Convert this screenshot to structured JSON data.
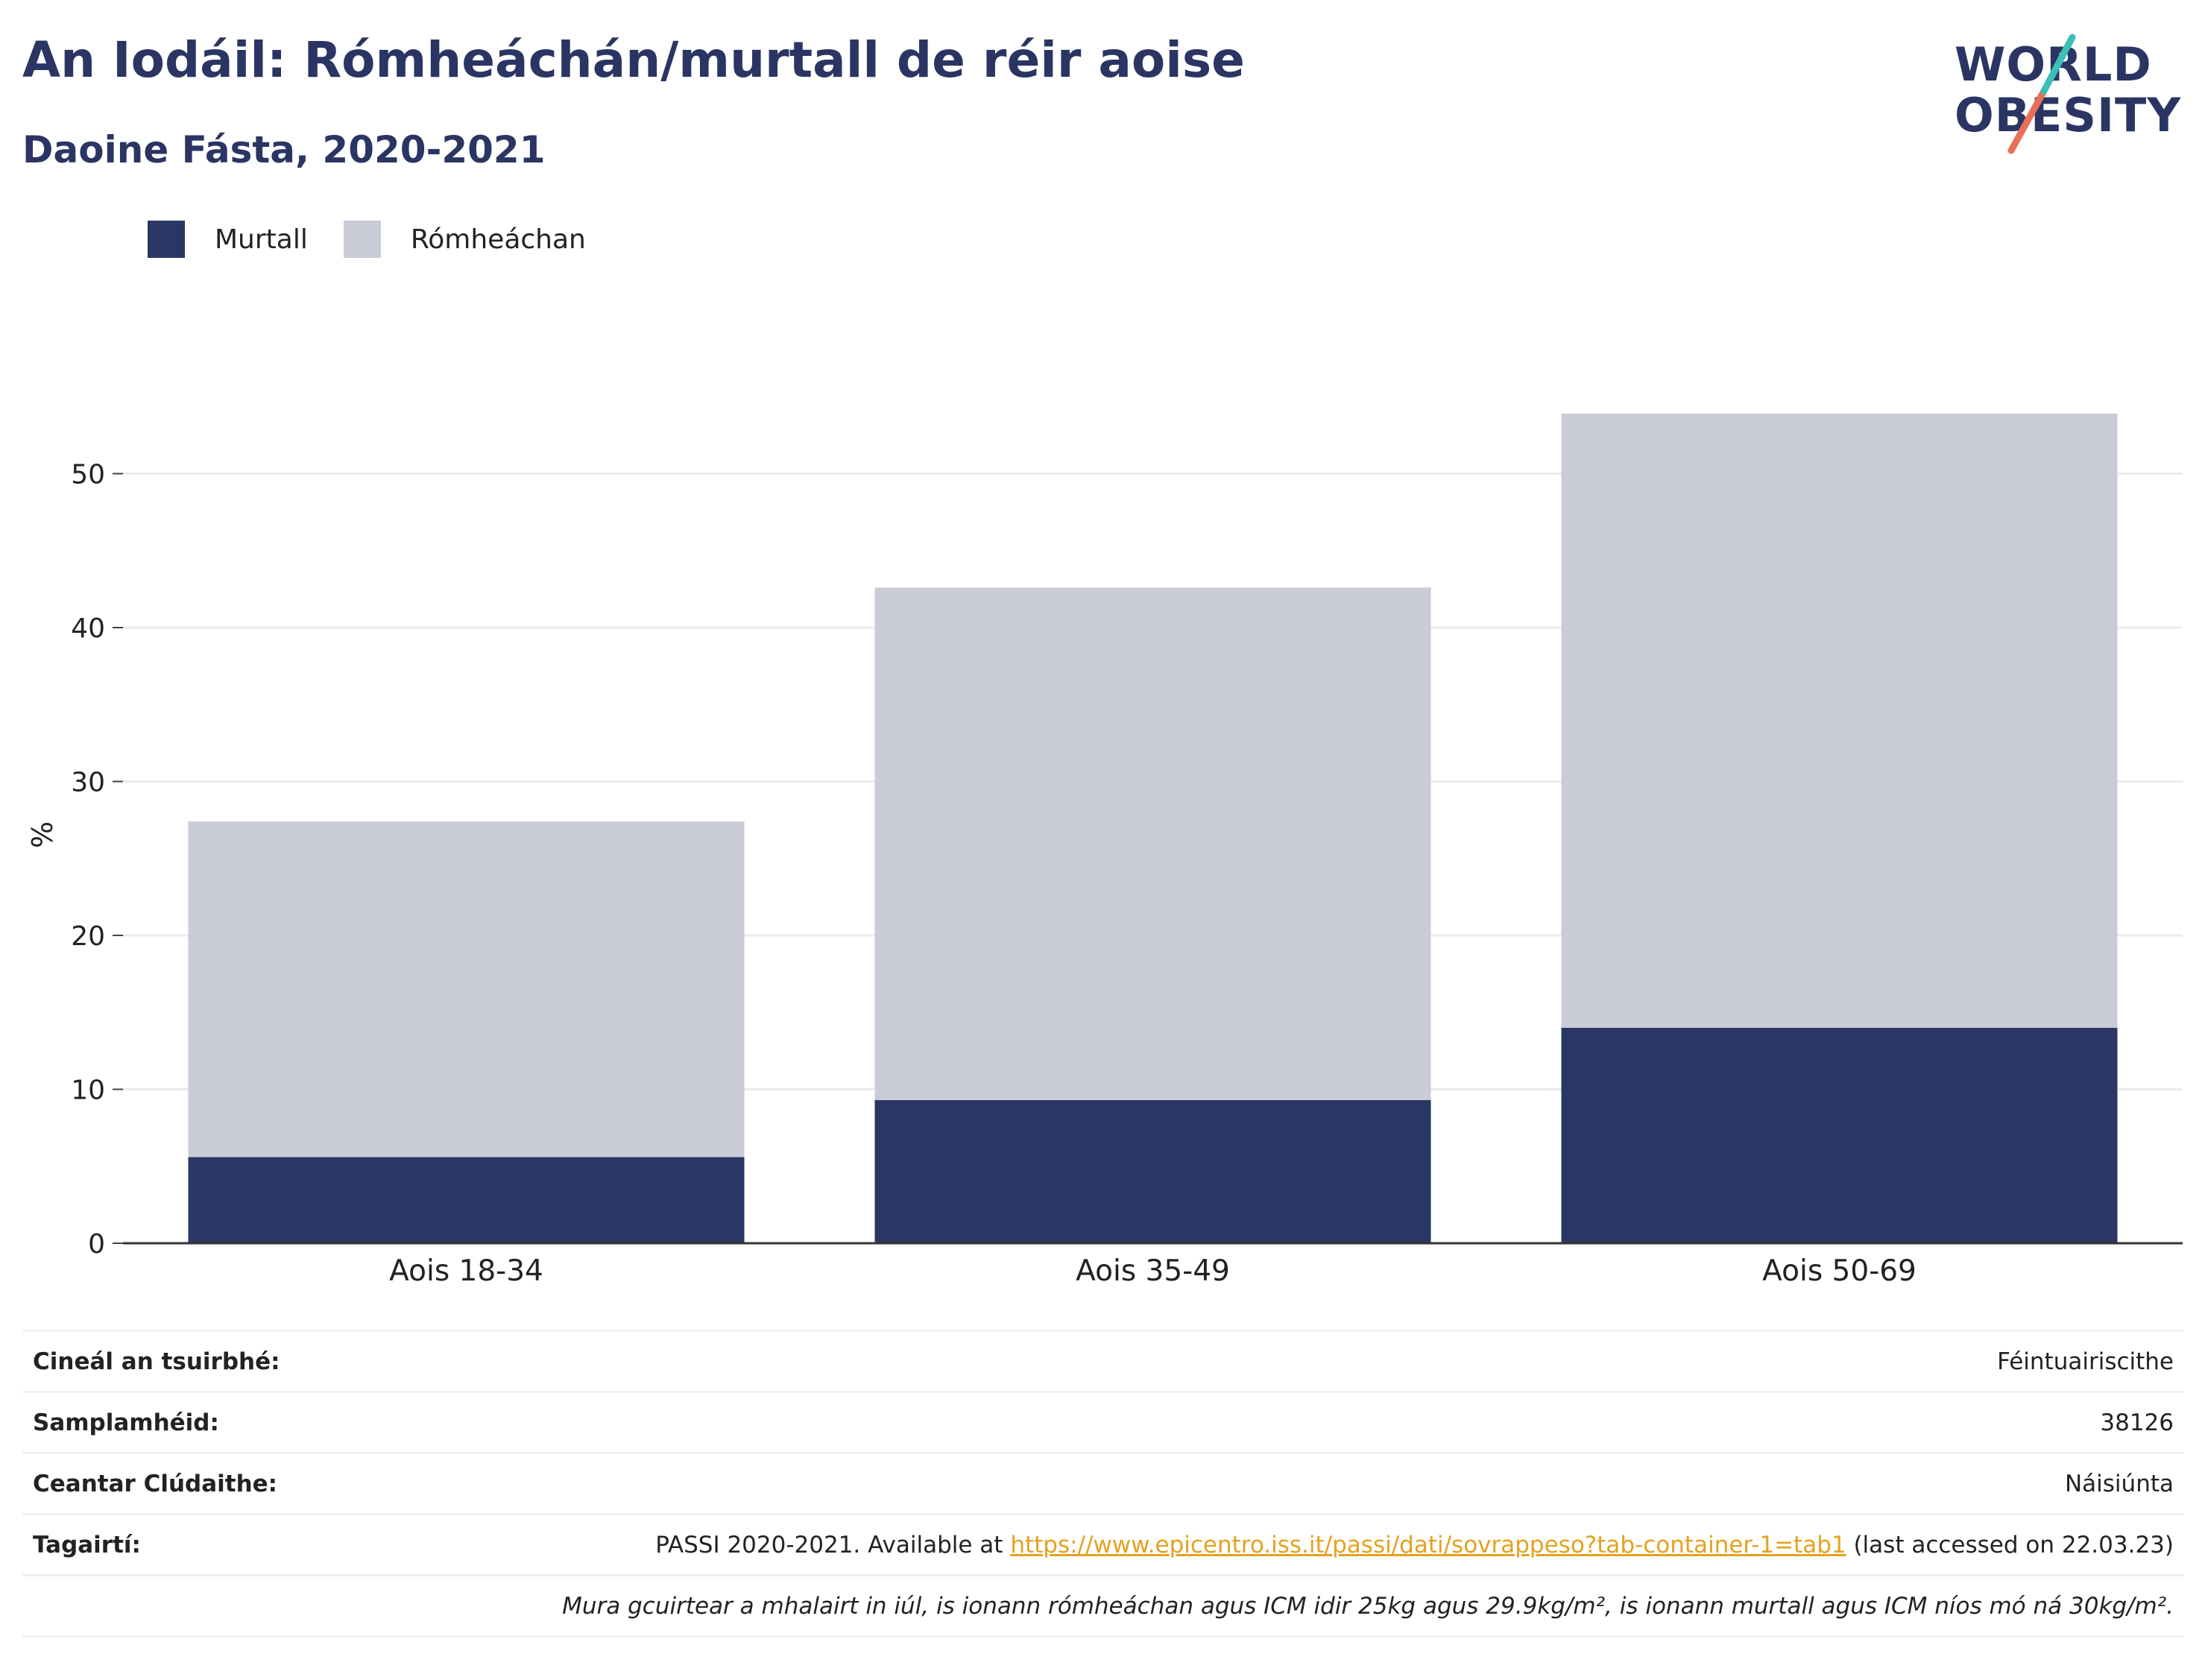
{
  "title": "An Iodáil: Rómheáchán/murtall de réir aoise",
  "subtitle": "Daoine Fásta, 2020-2021",
  "logo": {
    "line1": "WORLD",
    "line2": "OBESITY"
  },
  "legend": [
    {
      "label": "Murtall",
      "color": "#2a3764"
    },
    {
      "label": "Rómheáchan",
      "color": "#c9cbd7"
    }
  ],
  "chart_data": {
    "type": "bar",
    "stacked": true,
    "categories": [
      "Aois 18-34",
      "Aois 35-49",
      "Aois 50-69"
    ],
    "series": [
      {
        "name": "Murtall",
        "color": "#2a3764",
        "values": [
          5.6,
          9.3,
          14.0
        ]
      },
      {
        "name": "Rómheáchan",
        "color": "#c9cbd7",
        "values": [
          21.8,
          33.3,
          39.9
        ]
      }
    ],
    "ylabel": "%",
    "ylim": [
      0,
      60
    ],
    "yticks": [
      0,
      10,
      20,
      30,
      40,
      50
    ],
    "grid": true,
    "legend_position": "top-left"
  },
  "info_rows": [
    {
      "key": "Cineál an tsuirbhé:",
      "value": "Féintuairiscithe"
    },
    {
      "key": "Samplamhéid:",
      "value": "38126"
    },
    {
      "key": "Ceantar Clúdaithe:",
      "value": "Náisiúnta"
    }
  ],
  "reference": {
    "key": "Tagairtí:",
    "prefix": "PASSI 2020-2021. Available at ",
    "link": "https://www.epicentro.iss.it/passi/dati/sovrappeso?tab-container-1=tab1",
    "suffix": " (last accessed on 22.03.23)"
  },
  "note": "Mura gcuirtear a mhalairt in iúl, is ionann rómheáchan agus ICM idir 25kg agus 29.9kg/m², is ionann murtall agus ICM níos mó ná 30kg/m²."
}
